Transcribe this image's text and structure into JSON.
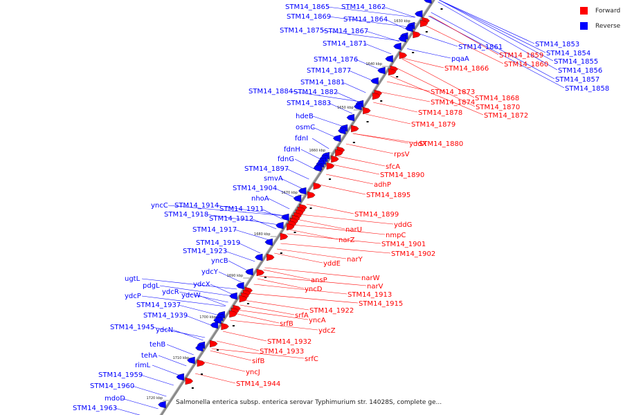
{
  "legend": {
    "forward": {
      "label": "Forward",
      "color": "#ff0000"
    },
    "reverse": {
      "label": "Reverse",
      "color": "#0000ff"
    }
  },
  "caption": "Salmonella enterica subsp. enterica serovar Typhimurium str. 14028S, complete ge...",
  "colors": {
    "forward": "#ff0000",
    "reverse": "#0000ff",
    "axis": "#888888"
  },
  "scale_ticks": [
    "1630 kbp",
    "1640 kbp",
    "1650 kbp",
    "1660 kbp",
    "1670 kbp",
    "1680 kbp",
    "1690 kbp",
    "1700 kbp",
    "1710 kbp",
    "1720 kbp"
  ],
  "reverse_labels": [
    "STM14_1865",
    "STM14_1862",
    "STM14_1869",
    "STM14_1864",
    "STM14_1875",
    "STM14_1867",
    "STM14_1871",
    "STM14_1876",
    "STM14_1877",
    "STM14_1881",
    "STM14_1884",
    "STM14_1882",
    "STM14_1883",
    "hdeB",
    "osmC",
    "fdnI",
    "fdnH",
    "fdnG",
    "STM14_1897",
    "smvA",
    "STM14_1904",
    "nhoA",
    "yncC",
    "STM14_1914",
    "STM14_1918",
    "STM14_1911",
    "STM14_1912",
    "STM14_1917",
    "STM14_1919",
    "STM14_1923",
    "yncB",
    "ydcY",
    "ugtL",
    "pdgL",
    "ydcX",
    "ydcR",
    "ydcP",
    "ydcW",
    "STM14_1937",
    "STM14_1939",
    "STM14_1945",
    "ydcN",
    "tehB",
    "tehA",
    "rimL",
    "STM14_1959",
    "STM14_1960",
    "mdoD",
    "STM14_1963",
    "STM14_1853",
    "STM14_1854",
    "STM14_1855",
    "STM14_1856",
    "STM14_1857",
    "STM14_1858",
    "STM14_1861",
    "pqaA"
  ],
  "forward_labels": [
    "STM14_1859",
    "STM14_1860",
    "STM14_1866",
    "STM14_1873",
    "STM14_1868",
    "STM14_1874",
    "STM14_1870",
    "STM14_1878",
    "STM14_1872",
    "STM14_1879",
    "yddX",
    "STM14_1880",
    "rpsV",
    "sfcA",
    "STM14_1890",
    "adhP",
    "STM14_1895",
    "STM14_1899",
    "yddG",
    "nmpC",
    "narU",
    "narZ",
    "STM14_1901",
    "STM14_1902",
    "narY",
    "yddE",
    "narW",
    "narV",
    "ansP",
    "STM14_1913",
    "yncD",
    "STM14_1915",
    "STM14_1922",
    "srfA",
    "yncA",
    "srfB",
    "ydcZ",
    "STM14_1932",
    "STM14_1933",
    "srfC",
    "sifB",
    "yncJ",
    "STM14_1944"
  ]
}
